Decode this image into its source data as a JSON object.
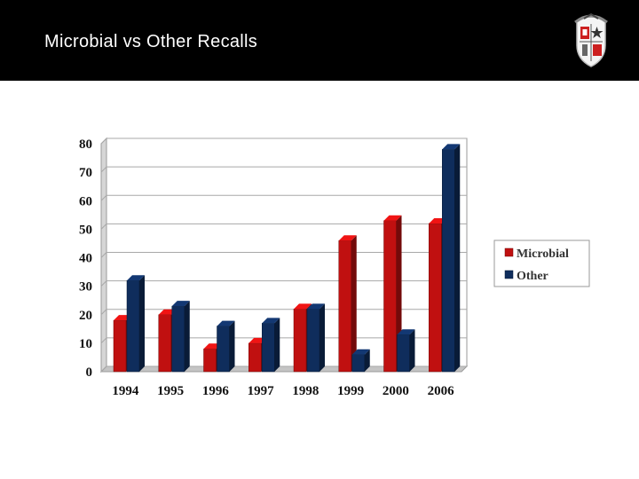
{
  "slide": {
    "title": "Microbial vs Other Recalls"
  },
  "logo": {
    "name": "university-crest",
    "colors": {
      "red": "#cc1f1f",
      "dark": "#333333"
    }
  },
  "chart_data": {
    "type": "bar",
    "title": "",
    "xlabel": "",
    "ylabel": "",
    "categories": [
      "1994",
      "1995",
      "1996",
      "1997",
      "1998",
      "1999",
      "2000",
      "2006"
    ],
    "series": [
      {
        "name": "Microbial",
        "color": "#c01010",
        "values": [
          18,
          20,
          8,
          10,
          22,
          46,
          53,
          52
        ]
      },
      {
        "name": "Other",
        "color": "#0f2d5c",
        "values": [
          32,
          23,
          16,
          17,
          22,
          6,
          13,
          78
        ]
      }
    ],
    "ylim": [
      0,
      80
    ],
    "yticks": [
      "0",
      "10",
      "20",
      "30",
      "40",
      "50",
      "60",
      "70",
      "80"
    ],
    "grid": true,
    "legend": "right"
  }
}
